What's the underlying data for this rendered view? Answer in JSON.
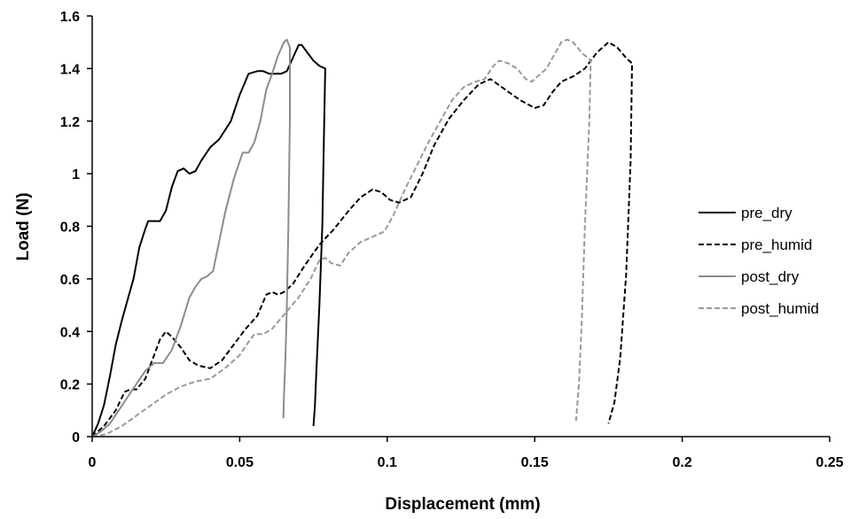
{
  "chart_data": {
    "type": "line",
    "title": "",
    "xlabel": "Displacement (mm)",
    "ylabel": "Load (N)",
    "xlim": [
      0,
      0.25
    ],
    "ylim": [
      0,
      1.6
    ],
    "x_ticks": [
      "0",
      "0.05",
      "0.1",
      "0.15",
      "0.2",
      "0.25"
    ],
    "y_ticks": [
      "0",
      "0.2",
      "0.4",
      "0.6",
      "0.8",
      "1",
      "1.2",
      "1.4",
      "1.6"
    ],
    "grid": false,
    "legend_position": "right",
    "series": [
      {
        "name": "pre_dry",
        "color": "#000000",
        "dash": "solid",
        "x": [
          0,
          0.002,
          0.004,
          0.006,
          0.008,
          0.01,
          0.012,
          0.014,
          0.016,
          0.018,
          0.019,
          0.02,
          0.021,
          0.023,
          0.025,
          0.027,
          0.029,
          0.031,
          0.033,
          0.035,
          0.037,
          0.04,
          0.043,
          0.047,
          0.05,
          0.053,
          0.056,
          0.058,
          0.06,
          0.062,
          0.064,
          0.066,
          0.068,
          0.07,
          0.071,
          0.073,
          0.075,
          0.077,
          0.079,
          0.0785,
          0.078,
          0.077,
          0.076,
          0.0755,
          0.075
        ],
        "y": [
          0,
          0.05,
          0.12,
          0.23,
          0.35,
          0.44,
          0.52,
          0.6,
          0.72,
          0.79,
          0.82,
          0.82,
          0.82,
          0.82,
          0.86,
          0.95,
          1.01,
          1.02,
          1.0,
          1.01,
          1.05,
          1.1,
          1.13,
          1.2,
          1.3,
          1.38,
          1.39,
          1.39,
          1.38,
          1.38,
          1.38,
          1.39,
          1.44,
          1.49,
          1.49,
          1.46,
          1.43,
          1.41,
          1.4,
          1.1,
          0.8,
          0.5,
          0.25,
          0.12,
          0.04
        ]
      },
      {
        "name": "pre_humid",
        "color": "#000000",
        "dash": "dashed",
        "x": [
          0,
          0.004,
          0.008,
          0.011,
          0.013,
          0.015,
          0.018,
          0.021,
          0.023,
          0.025,
          0.027,
          0.03,
          0.033,
          0.036,
          0.04,
          0.044,
          0.048,
          0.052,
          0.056,
          0.059,
          0.061,
          0.063,
          0.065,
          0.068,
          0.072,
          0.077,
          0.082,
          0.087,
          0.091,
          0.095,
          0.098,
          0.101,
          0.104,
          0.108,
          0.112,
          0.116,
          0.121,
          0.126,
          0.131,
          0.135,
          0.14,
          0.145,
          0.15,
          0.153,
          0.156,
          0.159,
          0.163,
          0.167,
          0.171,
          0.175,
          0.178,
          0.181,
          0.183,
          0.1825,
          0.181,
          0.179,
          0.177,
          0.175
        ],
        "y": [
          0,
          0.04,
          0.1,
          0.17,
          0.18,
          0.18,
          0.22,
          0.31,
          0.37,
          0.4,
          0.38,
          0.34,
          0.29,
          0.27,
          0.26,
          0.29,
          0.35,
          0.41,
          0.46,
          0.54,
          0.55,
          0.54,
          0.55,
          0.58,
          0.65,
          0.73,
          0.79,
          0.86,
          0.91,
          0.94,
          0.93,
          0.9,
          0.89,
          0.91,
          1.0,
          1.11,
          1.21,
          1.28,
          1.34,
          1.36,
          1.32,
          1.28,
          1.25,
          1.26,
          1.31,
          1.35,
          1.37,
          1.4,
          1.46,
          1.5,
          1.48,
          1.44,
          1.42,
          1.05,
          0.62,
          0.3,
          0.13,
          0.05
        ]
      },
      {
        "name": "post_dry",
        "color": "#8c8c8c",
        "dash": "solid",
        "x": [
          0,
          0.003,
          0.006,
          0.009,
          0.012,
          0.015,
          0.018,
          0.021,
          0.024,
          0.027,
          0.03,
          0.033,
          0.035,
          0.037,
          0.039,
          0.041,
          0.043,
          0.045,
          0.048,
          0.051,
          0.053,
          0.055,
          0.057,
          0.059,
          0.061,
          0.063,
          0.065,
          0.066,
          0.067,
          0.067,
          0.0665,
          0.066,
          0.0655,
          0.065,
          0.0648
        ],
        "y": [
          0,
          0.02,
          0.05,
          0.1,
          0.15,
          0.2,
          0.25,
          0.28,
          0.28,
          0.33,
          0.42,
          0.53,
          0.57,
          0.6,
          0.61,
          0.63,
          0.74,
          0.85,
          0.98,
          1.08,
          1.08,
          1.12,
          1.2,
          1.32,
          1.38,
          1.45,
          1.5,
          1.51,
          1.48,
          1.2,
          0.8,
          0.5,
          0.3,
          0.15,
          0.07
        ]
      },
      {
        "name": "post_humid",
        "color": "#999999",
        "dash": "dashed",
        "x": [
          0,
          0.005,
          0.01,
          0.015,
          0.02,
          0.025,
          0.03,
          0.035,
          0.04,
          0.045,
          0.05,
          0.053,
          0.055,
          0.058,
          0.061,
          0.064,
          0.067,
          0.07,
          0.074,
          0.077,
          0.079,
          0.081,
          0.084,
          0.087,
          0.091,
          0.095,
          0.099,
          0.102,
          0.106,
          0.11,
          0.114,
          0.118,
          0.122,
          0.126,
          0.13,
          0.133,
          0.136,
          0.138,
          0.141,
          0.144,
          0.147,
          0.149,
          0.151,
          0.154,
          0.157,
          0.159,
          0.161,
          0.163,
          0.166,
          0.169,
          0.1685,
          0.167,
          0.166,
          0.165,
          0.164
        ],
        "y": [
          0,
          0.01,
          0.04,
          0.08,
          0.12,
          0.16,
          0.19,
          0.21,
          0.22,
          0.26,
          0.31,
          0.36,
          0.39,
          0.39,
          0.41,
          0.45,
          0.49,
          0.53,
          0.6,
          0.67,
          0.68,
          0.66,
          0.65,
          0.7,
          0.74,
          0.76,
          0.78,
          0.84,
          0.94,
          1.03,
          1.12,
          1.2,
          1.28,
          1.33,
          1.35,
          1.36,
          1.41,
          1.43,
          1.42,
          1.4,
          1.36,
          1.35,
          1.37,
          1.4,
          1.46,
          1.5,
          1.51,
          1.5,
          1.46,
          1.43,
          1.2,
          0.8,
          0.45,
          0.2,
          0.06
        ]
      }
    ]
  }
}
